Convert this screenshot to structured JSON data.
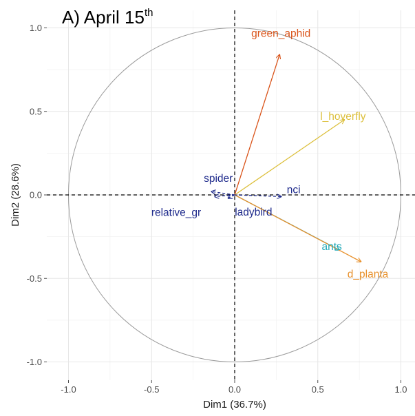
{
  "chart_data": {
    "type": "scatter",
    "subtype": "pca-variable-correlation-circle",
    "title": "A) April 15",
    "title_superscript": "th",
    "xlabel": "Dim1 (36.7%)",
    "ylabel": "Dim2 (28.6%)",
    "xlim": [
      -1.1,
      1.1
    ],
    "ylim": [
      -1.05,
      1.05
    ],
    "xticks": [
      -1.0,
      -0.5,
      0.0,
      0.5,
      1.0
    ],
    "xtick_labels": [
      "-1.0",
      "-0.5",
      "0.0",
      "0.5",
      "1.0"
    ],
    "yticks": [
      -1.0,
      -0.5,
      0.0,
      0.5,
      1.0
    ],
    "ytick_labels": [
      "-1.0",
      "-0.5",
      "0.0",
      "0.5",
      "1.0"
    ],
    "grid": true,
    "unit_circle": true,
    "reference_lines": "dashed at x=0 and y=0",
    "variables": [
      {
        "name": "green_aphid",
        "x": 0.27,
        "y": 0.84,
        "color": "#d95319"
      },
      {
        "name": "l_hoverfly",
        "x": 0.66,
        "y": 0.45,
        "color": "#dcbf3a"
      },
      {
        "name": "ants",
        "x": 0.63,
        "y": -0.33,
        "color": "#21a9b8"
      },
      {
        "name": "d_planta",
        "x": 0.76,
        "y": -0.4,
        "color": "#e8912c"
      },
      {
        "name": "nci",
        "x": 0.28,
        "y": -0.01,
        "color": "#1f2b8c"
      },
      {
        "name": "spider",
        "x": -0.14,
        "y": 0.02,
        "color": "#1f2b8c"
      },
      {
        "name": "relative_gr",
        "x": -0.12,
        "y": -0.01,
        "color": "#1f2b8c"
      },
      {
        "name": "ladybird",
        "x": -0.04,
        "y": -0.02,
        "color": "#1f2b8c"
      }
    ]
  }
}
